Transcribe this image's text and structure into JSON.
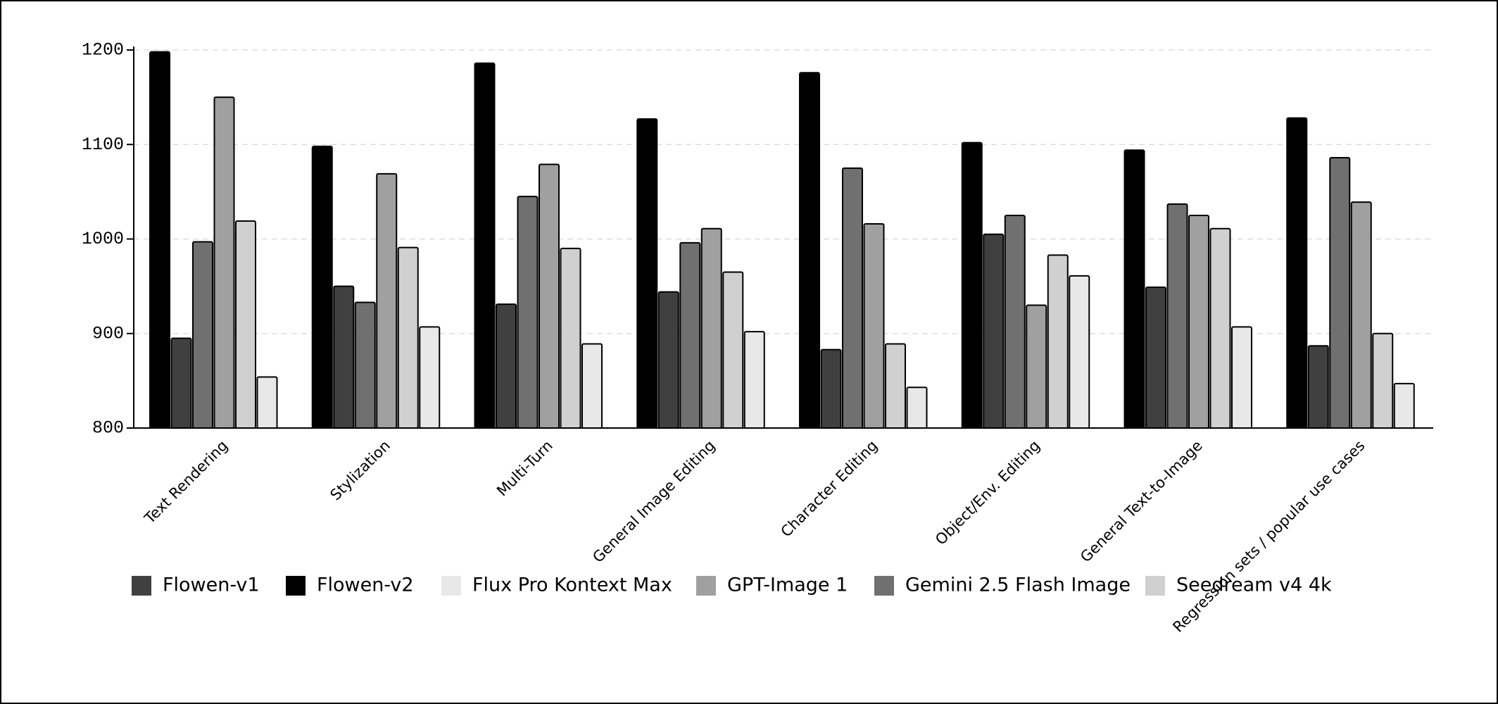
{
  "chart_data": {
    "type": "bar",
    "categories": [
      "Text Rendering",
      "Stylization",
      "Multi-Turn",
      "General Image Editing",
      "Character Editing",
      "Object/Env. Editing",
      "General Text-to-Image",
      "Regression sets / popular use cases"
    ],
    "series": [
      {
        "name": "Flowen-v1",
        "color": "#404040",
        "values": [
          895,
          950,
          931,
          944,
          883,
          1005,
          949,
          887
        ]
      },
      {
        "name": "Flowen-v2",
        "color": "#000000",
        "values": [
          1198,
          1098,
          1186,
          1127,
          1176,
          1102,
          1094,
          1128
        ]
      },
      {
        "name": "Flux Pro Kontext Max",
        "color": "#e8e8e8",
        "values": [
          854,
          907,
          889,
          902,
          843,
          961,
          907,
          847
        ]
      },
      {
        "name": "GPT-Image 1",
        "color": "#a0a0a0",
        "values": [
          1150,
          1069,
          1079,
          1011,
          1016,
          930,
          1025,
          1039
        ]
      },
      {
        "name": "Gemini 2.5 Flash Image",
        "color": "#707070",
        "values": [
          997,
          933,
          1045,
          996,
          1075,
          1025,
          1037,
          1086
        ]
      },
      {
        "name": "Seedream v4 4k",
        "color": "#d0d0d0",
        "values": [
          1019,
          991,
          990,
          965,
          889,
          983,
          1011,
          900
        ]
      }
    ],
    "ylim": [
      800,
      1200
    ],
    "yticks": [
      800,
      900,
      1000,
      1100,
      1200
    ],
    "grid": true
  }
}
